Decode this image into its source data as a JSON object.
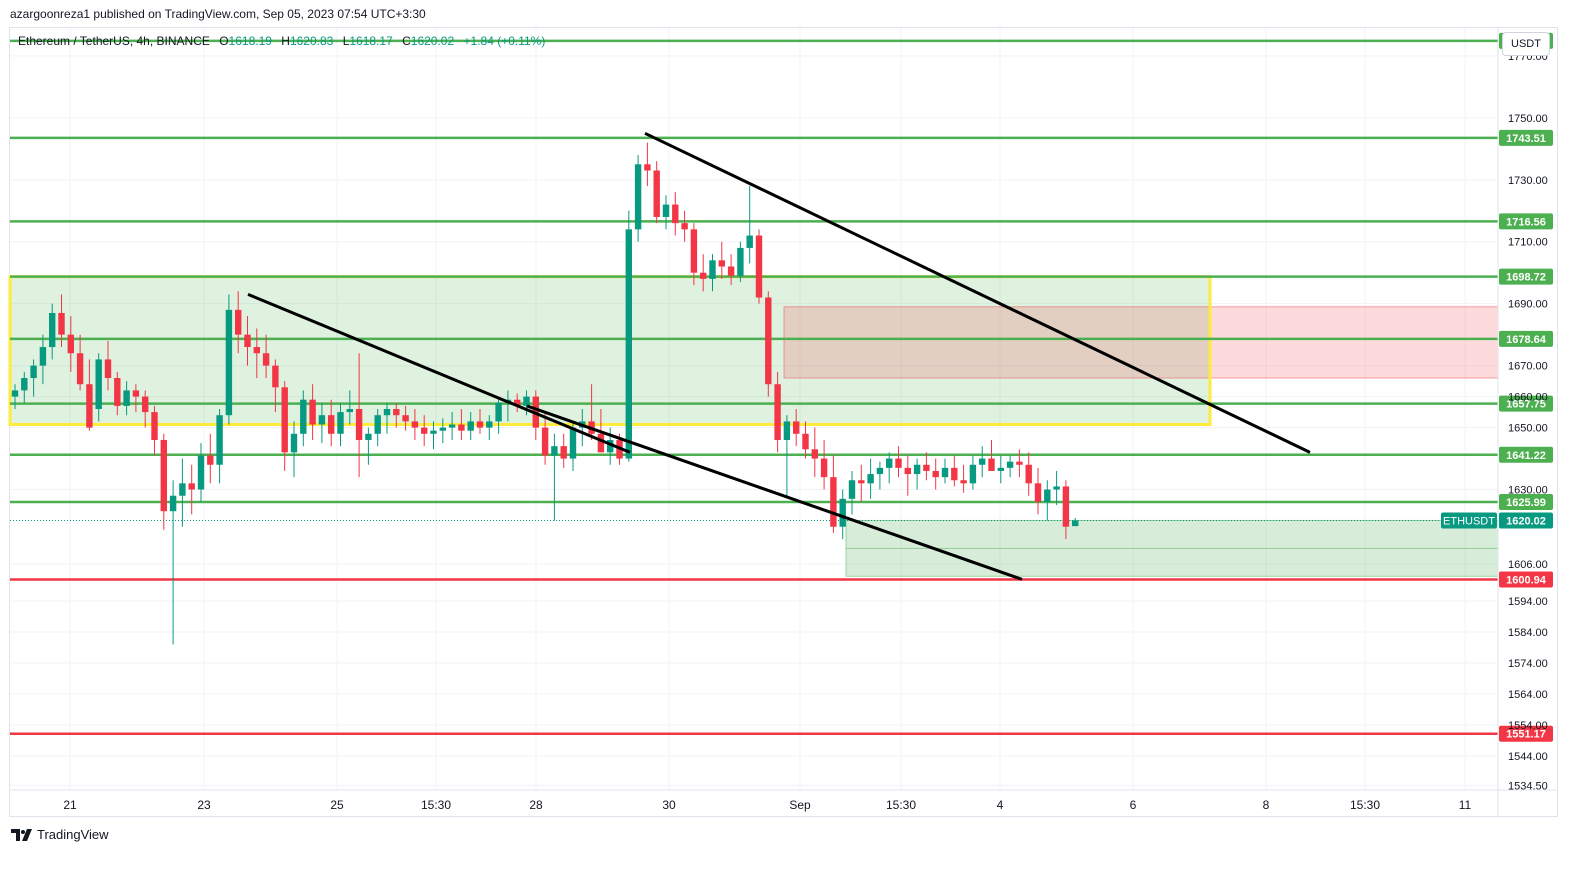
{
  "header": {
    "published_by": "azargoonreza1 published on TradingView.com, Sep 05, 2023 07:54 UTC+3:30"
  },
  "symbol": {
    "name": "Ethereum / TetherUS, 4h, BINANCE",
    "open_label": "O",
    "open": "1618.19",
    "high_label": "H",
    "high": "1620.83",
    "low_label": "L",
    "low": "1618.17",
    "close_label": "C",
    "close": "1620.02",
    "change": "+1.84 (+0.11%)"
  },
  "currency_button": "USDT",
  "footer": {
    "brand": "TradingView"
  },
  "chart_data": {
    "type": "candlestick",
    "x_labels": [
      "21",
      "23",
      "25",
      "15:30",
      "28",
      "30",
      "Sep",
      "15:30",
      "4",
      "6",
      "8",
      "15:30",
      "11"
    ],
    "y_tick_labels": [
      "1770.00",
      "1750.00",
      "1730.00",
      "1710.00",
      "1690.00",
      "1670.00",
      "1660.00",
      "1650.00",
      "1630.00",
      "1606.00",
      "1594.00",
      "1584.00",
      "1574.00",
      "1564.00",
      "1554.00",
      "1544.00",
      "1534.50"
    ],
    "ylim": [
      1533,
      1779
    ],
    "grid": true,
    "colors": {
      "up": "#089981",
      "down": "#f23645",
      "level_green": "#4caf50",
      "level_red": "#f23645",
      "zone_yellow": "#ffeb3b",
      "trendline": "#000000"
    },
    "horizontal_levels": [
      {
        "label": "1774.83",
        "value": 1774.83,
        "color": "#4caf50"
      },
      {
        "label": "1743.51",
        "value": 1743.51,
        "color": "#4caf50"
      },
      {
        "label": "1716.56",
        "value": 1716.56,
        "color": "#4caf50"
      },
      {
        "label": "1698.72",
        "value": 1698.72,
        "color": "#4caf50"
      },
      {
        "label": "1678.64",
        "value": 1678.64,
        "color": "#4caf50"
      },
      {
        "label": "1657.75",
        "value": 1657.75,
        "color": "#4caf50"
      },
      {
        "label": "1641.22",
        "value": 1641.22,
        "color": "#4caf50"
      },
      {
        "label": "1625.99",
        "value": 1625.99,
        "color": "#4caf50"
      },
      {
        "label": "1600.94",
        "value": 1600.94,
        "color": "#f23645"
      },
      {
        "label": "1551.17",
        "value": 1551.17,
        "color": "#f23645"
      }
    ],
    "current_price": {
      "symbol": "ETHUSDT",
      "label": "1620.02",
      "value": 1620.02
    },
    "candles": [
      [
        1660,
        1664,
        1656,
        1662
      ],
      [
        1662,
        1668,
        1658,
        1666
      ],
      [
        1666,
        1672,
        1660,
        1670
      ],
      [
        1670,
        1680,
        1664,
        1676
      ],
      [
        1676,
        1690,
        1672,
        1687
      ],
      [
        1687,
        1693,
        1676,
        1680
      ],
      [
        1680,
        1686,
        1668,
        1674
      ],
      [
        1674,
        1680,
        1662,
        1664
      ],
      [
        1664,
        1672,
        1649,
        1650
      ],
      [
        1656,
        1674,
        1652,
        1672
      ],
      [
        1672,
        1678,
        1662,
        1666
      ],
      [
        1666,
        1668,
        1654,
        1657
      ],
      [
        1657,
        1665,
        1654,
        1662
      ],
      [
        1662,
        1664,
        1655,
        1660
      ],
      [
        1660,
        1662,
        1650,
        1655
      ],
      [
        1655,
        1657,
        1641,
        1646
      ],
      [
        1646,
        1648,
        1617,
        1623
      ],
      [
        1623,
        1633,
        1580,
        1628
      ],
      [
        1628,
        1640,
        1618,
        1632
      ],
      [
        1632,
        1638,
        1622,
        1630
      ],
      [
        1630,
        1645,
        1626,
        1641
      ],
      [
        1641,
        1648,
        1632,
        1638
      ],
      [
        1638,
        1656,
        1632,
        1654
      ],
      [
        1654,
        1693,
        1651,
        1688
      ],
      [
        1688,
        1694,
        1674,
        1680
      ],
      [
        1680,
        1686,
        1670,
        1676
      ],
      [
        1676,
        1682,
        1666,
        1674
      ],
      [
        1674,
        1680,
        1666,
        1670
      ],
      [
        1670,
        1672,
        1655,
        1663
      ],
      [
        1663,
        1665,
        1636,
        1642
      ],
      [
        1642,
        1652,
        1634,
        1648
      ],
      [
        1648,
        1662,
        1644,
        1659
      ],
      [
        1659,
        1664,
        1646,
        1651
      ],
      [
        1651,
        1658,
        1645,
        1654
      ],
      [
        1654,
        1659,
        1644,
        1648
      ],
      [
        1648,
        1658,
        1644,
        1655
      ],
      [
        1655,
        1662,
        1651,
        1656
      ],
      [
        1656,
        1674,
        1634,
        1646
      ],
      [
        1646,
        1650,
        1638,
        1648
      ],
      [
        1648,
        1656,
        1644,
        1654
      ],
      [
        1654,
        1658,
        1648,
        1656
      ],
      [
        1656,
        1658,
        1650,
        1654
      ],
      [
        1654,
        1657,
        1649,
        1652
      ],
      [
        1652,
        1656,
        1646,
        1650
      ],
      [
        1650,
        1654,
        1644,
        1648
      ],
      [
        1648,
        1652,
        1643,
        1649
      ],
      [
        1649,
        1653,
        1645,
        1650
      ],
      [
        1650,
        1655,
        1646,
        1651
      ],
      [
        1651,
        1656,
        1646,
        1649
      ],
      [
        1649,
        1655,
        1646,
        1652
      ],
      [
        1652,
        1656,
        1648,
        1650
      ],
      [
        1650,
        1654,
        1646,
        1652
      ],
      [
        1652,
        1660,
        1648,
        1658
      ],
      [
        1658,
        1662,
        1652,
        1659
      ],
      [
        1659,
        1661,
        1655,
        1657
      ],
      [
        1657,
        1662,
        1654,
        1660
      ],
      [
        1660,
        1662,
        1646,
        1650
      ],
      [
        1650,
        1655,
        1638,
        1641
      ],
      [
        1641,
        1648,
        1620,
        1644
      ],
      [
        1644,
        1648,
        1637,
        1640
      ],
      [
        1640,
        1652,
        1636,
        1650
      ],
      [
        1650,
        1656,
        1644,
        1652
      ],
      [
        1652,
        1664,
        1646,
        1648
      ],
      [
        1648,
        1656,
        1642,
        1642
      ],
      [
        1642,
        1650,
        1638,
        1646
      ],
      [
        1646,
        1648,
        1638,
        1640
      ],
      [
        1640,
        1720,
        1639,
        1714
      ],
      [
        1714,
        1738,
        1710,
        1735
      ],
      [
        1735,
        1742,
        1728,
        1733
      ],
      [
        1733,
        1736,
        1716,
        1718
      ],
      [
        1718,
        1725,
        1714,
        1722
      ],
      [
        1722,
        1726,
        1712,
        1716
      ],
      [
        1716,
        1720,
        1710,
        1714
      ],
      [
        1714,
        1716,
        1696,
        1700
      ],
      [
        1700,
        1706,
        1694,
        1698
      ],
      [
        1698,
        1706,
        1694,
        1704
      ],
      [
        1704,
        1710,
        1698,
        1702
      ],
      [
        1702,
        1706,
        1696,
        1699
      ],
      [
        1699,
        1710,
        1697,
        1708
      ],
      [
        1708,
        1728,
        1703,
        1712
      ],
      [
        1712,
        1714,
        1690,
        1692
      ],
      [
        1692,
        1694,
        1660,
        1664
      ],
      [
        1664,
        1668,
        1642,
        1646
      ],
      [
        1646,
        1654,
        1628,
        1652
      ],
      [
        1652,
        1656,
        1644,
        1648
      ],
      [
        1648,
        1652,
        1640,
        1643
      ],
      [
        1643,
        1650,
        1634,
        1640
      ],
      [
        1640,
        1646,
        1630,
        1634
      ],
      [
        1634,
        1641,
        1616,
        1618
      ],
      [
        1618,
        1630,
        1614,
        1627
      ],
      [
        1627,
        1636,
        1622,
        1633
      ],
      [
        1633,
        1638,
        1626,
        1632
      ],
      [
        1632,
        1640,
        1627,
        1635
      ],
      [
        1635,
        1639,
        1630,
        1637
      ],
      [
        1637,
        1642,
        1632,
        1640
      ],
      [
        1640,
        1644,
        1634,
        1637
      ],
      [
        1637,
        1641,
        1628,
        1635
      ],
      [
        1635,
        1640,
        1630,
        1638
      ],
      [
        1638,
        1642,
        1633,
        1636
      ],
      [
        1636,
        1640,
        1630,
        1634
      ],
      [
        1634,
        1640,
        1632,
        1637
      ],
      [
        1637,
        1641,
        1631,
        1633
      ],
      [
        1633,
        1638,
        1629,
        1632
      ],
      [
        1632,
        1641,
        1630,
        1638
      ],
      [
        1638,
        1644,
        1634,
        1640
      ],
      [
        1640,
        1646,
        1636,
        1636
      ],
      [
        1636,
        1641,
        1632,
        1637
      ],
      [
        1637,
        1641,
        1634,
        1639
      ],
      [
        1639,
        1643,
        1634,
        1638
      ],
      [
        1638,
        1642,
        1628,
        1632
      ],
      [
        1632,
        1637,
        1622,
        1626
      ],
      [
        1626,
        1633,
        1620,
        1630
      ],
      [
        1630,
        1636,
        1625,
        1631
      ],
      [
        1631,
        1633,
        1614,
        1618
      ],
      [
        1618.19,
        1620.83,
        1618.17,
        1620.02
      ]
    ]
  }
}
